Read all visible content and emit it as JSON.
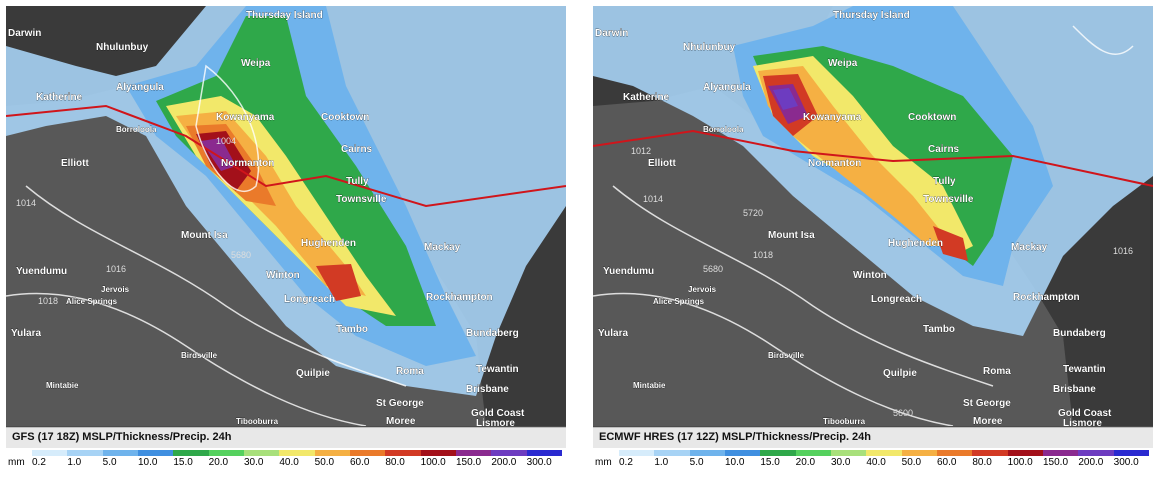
{
  "panels": [
    {
      "caption": "GFS (17 18Z) MSLP/Thickness/Precip. 24h",
      "places": [
        "Thursday Island",
        "Darwin",
        "Nhulunbuy",
        "Weipa",
        "Alyangula",
        "Katherine",
        "Borroloola",
        "Kowanyama",
        "Cooktown",
        "Normanton",
        "Cairns",
        "Elliott",
        "Tully",
        "Townsville",
        "Mount Isa",
        "Hughenden",
        "Mackay",
        "Yuendumu",
        "Winton",
        "Jervois",
        "Alice Springs",
        "Longreach",
        "Rockhampton",
        "Yulara",
        "Tambo",
        "Bundaberg",
        "Birdsville",
        "Quilpie",
        "Roma",
        "Tewantin",
        "Mintabie",
        "Brisbane",
        "St George",
        "Gold Coast",
        "Lismore",
        "Tibooburra",
        "Moree"
      ],
      "mslp_labels": [
        "1004",
        "1014",
        "1016",
        "1018",
        "5680"
      ]
    },
    {
      "caption": "ECMWF HRES (17 12Z) MSLP/Thickness/Precip. 24h",
      "places": [
        "Thursday Island",
        "Darwin",
        "Nhulunbuy",
        "Weipa",
        "Alyangula",
        "Katherine",
        "Borroloola",
        "Kowanyama",
        "Cooktown",
        "Normanton",
        "Cairns",
        "Elliott",
        "Tully",
        "Townsville",
        "Mount Isa",
        "Hughenden",
        "Mackay",
        "Yuendumu",
        "Winton",
        "Jervois",
        "Alice Springs",
        "Longreach",
        "Rockhampton",
        "Yulara",
        "Tambo",
        "Bundaberg",
        "Birdsville",
        "Quilpie",
        "Roma",
        "Tewantin",
        "Mintabie",
        "Brisbane",
        "St George",
        "Gold Coast",
        "Lismore",
        "Tibooburra",
        "Moree"
      ],
      "mslp_labels": [
        "1012",
        "1014",
        "1016",
        "1018",
        "5720",
        "5680",
        "5600"
      ]
    }
  ],
  "legend": {
    "unit": "mm",
    "values": [
      "0.2",
      "1.0",
      "5.0",
      "10.0",
      "15.0",
      "20.0",
      "30.0",
      "40.0",
      "50.0",
      "60.0",
      "80.0",
      "100.0",
      "150.0",
      "200.0",
      "300.0"
    ],
    "colors": [
      "#d6ecfb",
      "#a7d3f5",
      "#6fb3ec",
      "#3f8fe0",
      "#2fa84a",
      "#55d15e",
      "#a8e07b",
      "#f2e86a",
      "#f5b043",
      "#ea7a2a",
      "#d23a24",
      "#a3101a",
      "#8a2a8f",
      "#6d3cc0",
      "#2a2ad0"
    ]
  }
}
